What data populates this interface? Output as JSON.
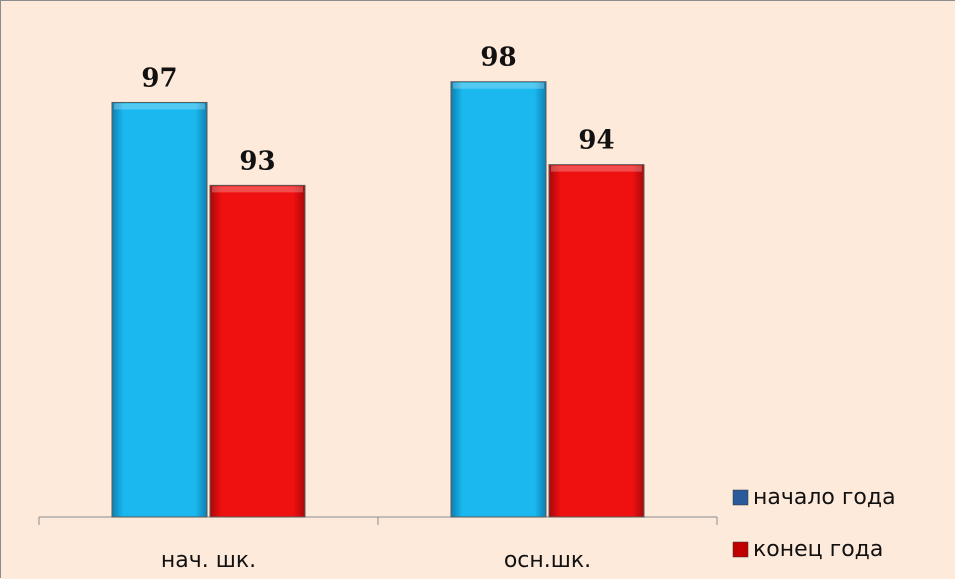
{
  "chart_data": {
    "type": "bar",
    "categories": [
      "нач. шк.",
      "осн.шк."
    ],
    "series": [
      {
        "name": "начало года",
        "values": [
          97,
          98
        ],
        "color": "#1ab8ee"
      },
      {
        "name": "конец года",
        "values": [
          93,
          94
        ],
        "color": "#ef1010"
      }
    ],
    "title": "",
    "xlabel": "",
    "ylabel": "",
    "ylim": [
      77,
      99
    ],
    "grid": false,
    "y_axis_visible": false,
    "data_labels": true,
    "legend_position": "bottom-right"
  },
  "colors": {
    "plot_background": "#fdeadb",
    "axis": "#8c8c8c",
    "label_text": "#111111",
    "legend_marker_1": "#2a5a9c",
    "legend_marker_2": "#c00000"
  }
}
